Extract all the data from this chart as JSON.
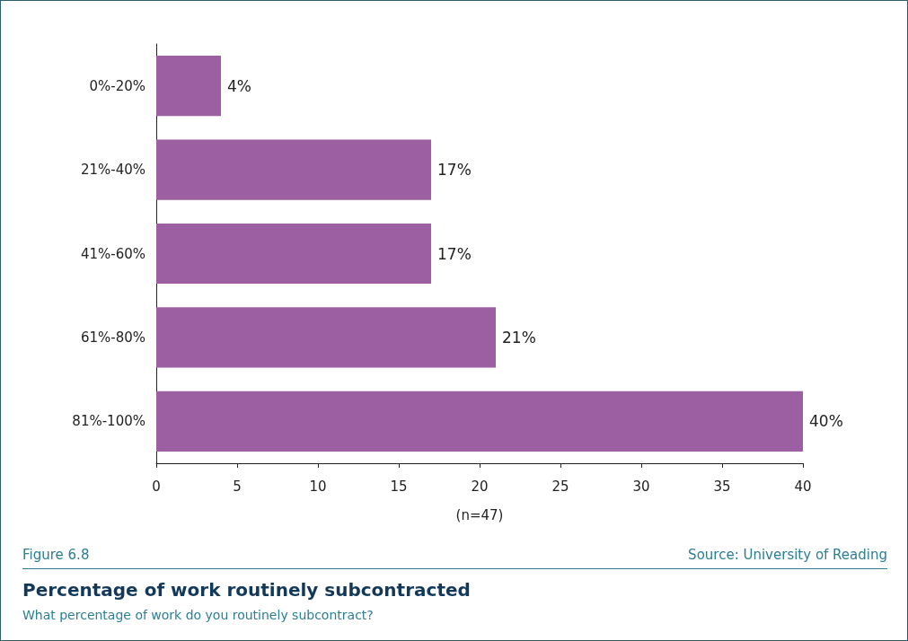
{
  "chart_data": {
    "type": "bar",
    "orientation": "horizontal",
    "title": "Percentage of work routinely subcontracted",
    "subtitle": "What percentage of work do you routinely subcontract?",
    "xlabel": "(n=47)",
    "categories": [
      "0%-20%",
      "21%-40%",
      "41%-60%",
      "61%-80%",
      "81%-100%"
    ],
    "values": [
      4,
      17,
      17,
      21,
      40
    ],
    "color": "#9b5fa2",
    "value_labels": [
      "4%",
      "17%",
      "17%",
      "21%",
      "40%"
    ],
    "xlim": [
      0,
      40
    ],
    "xticks": [
      0,
      5,
      10,
      15,
      20,
      25,
      30,
      35,
      40
    ],
    "annotations": [
      "Figure 6.8",
      "Source: University of Reading"
    ]
  }
}
